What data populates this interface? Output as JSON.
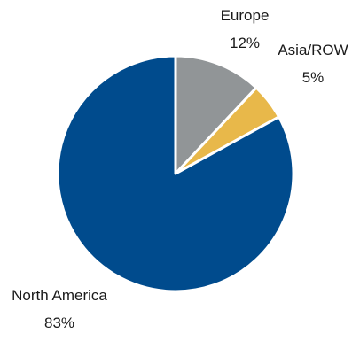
{
  "chart_data": {
    "type": "pie",
    "categories": [
      "Europe",
      "Asia/ROW",
      "North America"
    ],
    "values": [
      12,
      5,
      83
    ],
    "value_labels": [
      "12%",
      "5%",
      "83%"
    ],
    "colors": [
      "#919597",
      "#e8b84a",
      "#004b8d"
    ],
    "title": "",
    "legend": "none",
    "start_angle": "12 o'clock",
    "direction": "clockwise"
  }
}
